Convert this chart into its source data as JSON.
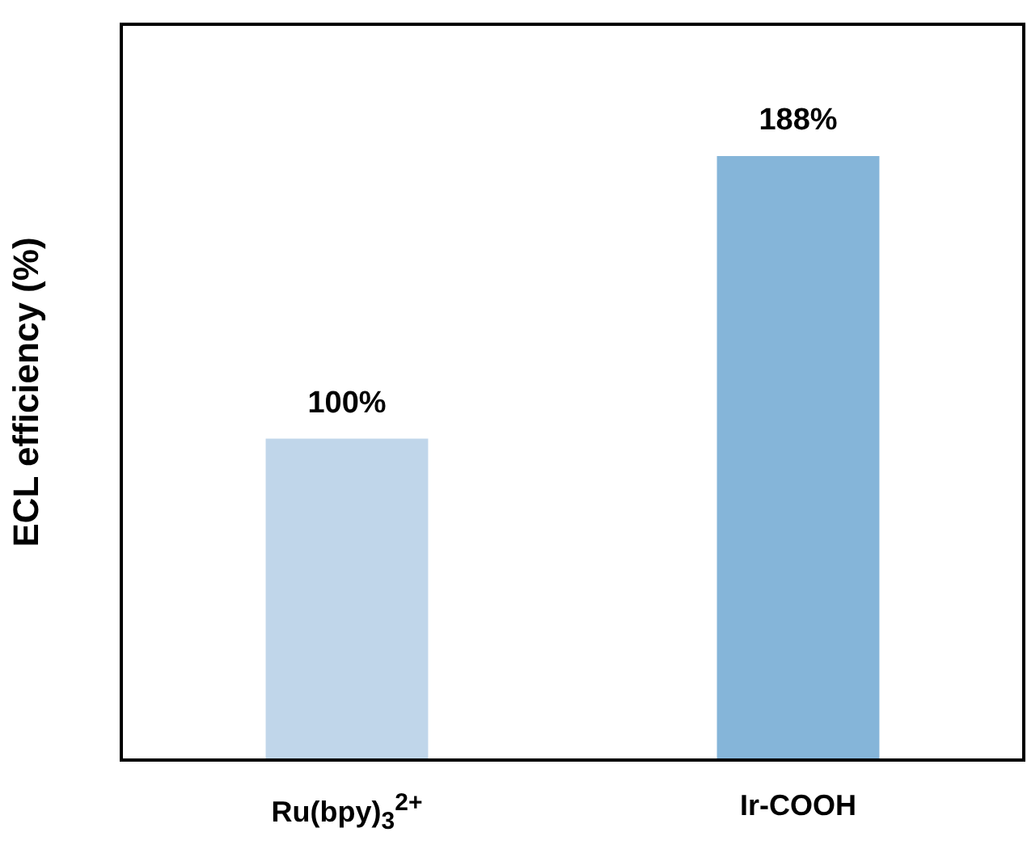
{
  "chart_data": {
    "type": "bar",
    "ylabel": "ECL efficiency (%)",
    "categories": [
      "Ru(bpy)$_{3}$$^{2+}$",
      "Ir-COOH"
    ],
    "values": [
      100,
      188
    ],
    "colors": [
      "#c0d6ea",
      "#85b5d9"
    ],
    "value_labels": [
      "100%",
      "188%"
    ],
    "ylim": [
      0,
      229
    ],
    "grid": false,
    "legend": false
  }
}
